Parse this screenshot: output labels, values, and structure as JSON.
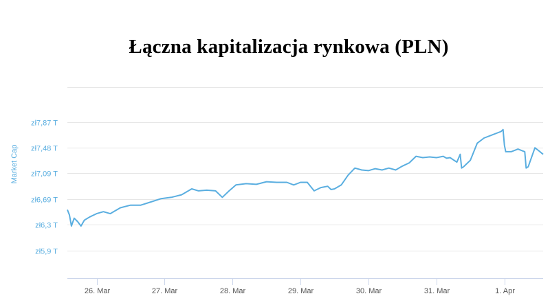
{
  "chart_data": {
    "type": "line",
    "title": "Łączna kapitalizacja rynkowa (PLN)",
    "ylabel": "Market Cap",
    "xlabel": "",
    "grid": true,
    "legend": "none",
    "color": "#5aaee0",
    "y_ticks": [
      {
        "value": 7.87,
        "label": "zł7,87 T"
      },
      {
        "value": 7.48,
        "label": "zł7,48 T"
      },
      {
        "value": 7.09,
        "label": "zł7,09 T"
      },
      {
        "value": 6.69,
        "label": "zł6,69 T"
      },
      {
        "value": 6.3,
        "label": "zł6,3 T"
      },
      {
        "value": 5.9,
        "label": "zł5,9 T"
      }
    ],
    "x_ticks": [
      {
        "value": 26,
        "label": "26. Mar"
      },
      {
        "value": 27,
        "label": "27. Mar"
      },
      {
        "value": 28,
        "label": "28. Mar"
      },
      {
        "value": 29,
        "label": "29. Mar"
      },
      {
        "value": 30,
        "label": "30. Mar"
      },
      {
        "value": 31,
        "label": "31. Mar"
      },
      {
        "value": 32,
        "label": "1. Apr"
      }
    ],
    "xlim": [
      25.57,
      32.57
    ],
    "ylim": [
      5.48,
      8.41
    ],
    "series": [
      {
        "x": [
          25.57,
          25.6,
          25.63,
          25.67,
          25.72,
          25.77,
          25.82,
          25.9,
          26.0,
          26.1,
          26.2,
          26.35,
          26.5,
          26.65,
          26.8,
          26.95,
          27.1,
          27.25,
          27.4,
          27.5,
          27.62,
          27.75,
          27.85,
          27.95,
          28.05,
          28.2,
          28.35,
          28.5,
          28.65,
          28.8,
          28.9,
          29.0,
          29.1,
          29.2,
          29.3,
          29.4,
          29.45,
          29.5,
          29.6,
          29.7,
          29.8,
          29.9,
          30.0,
          30.1,
          30.2,
          30.3,
          30.4,
          30.5,
          30.6,
          30.7,
          30.8,
          30.9,
          31.0,
          31.1,
          31.15,
          31.2,
          31.3,
          31.35,
          31.37,
          31.4,
          31.42,
          31.5,
          31.6,
          31.7,
          31.8,
          31.95,
          31.98,
          32.0,
          32.02,
          32.1,
          32.2,
          32.3,
          32.32,
          32.35,
          32.45,
          32.5,
          32.57
        ],
        "values": [
          6.53,
          6.45,
          6.28,
          6.4,
          6.35,
          6.28,
          6.37,
          6.42,
          6.47,
          6.5,
          6.47,
          6.56,
          6.6,
          6.6,
          6.65,
          6.7,
          6.72,
          6.76,
          6.85,
          6.82,
          6.83,
          6.82,
          6.72,
          6.82,
          6.91,
          6.93,
          6.92,
          6.96,
          6.95,
          6.95,
          6.91,
          6.95,
          6.95,
          6.82,
          6.87,
          6.89,
          6.84,
          6.85,
          6.91,
          7.06,
          7.17,
          7.14,
          7.13,
          7.16,
          7.14,
          7.17,
          7.14,
          7.2,
          7.25,
          7.35,
          7.33,
          7.34,
          7.33,
          7.35,
          7.32,
          7.33,
          7.26,
          7.38,
          7.17,
          7.19,
          7.21,
          7.29,
          7.55,
          7.63,
          7.67,
          7.73,
          7.76,
          7.52,
          7.42,
          7.42,
          7.46,
          7.42,
          7.17,
          7.19,
          7.48,
          7.44,
          7.38
        ]
      }
    ]
  }
}
